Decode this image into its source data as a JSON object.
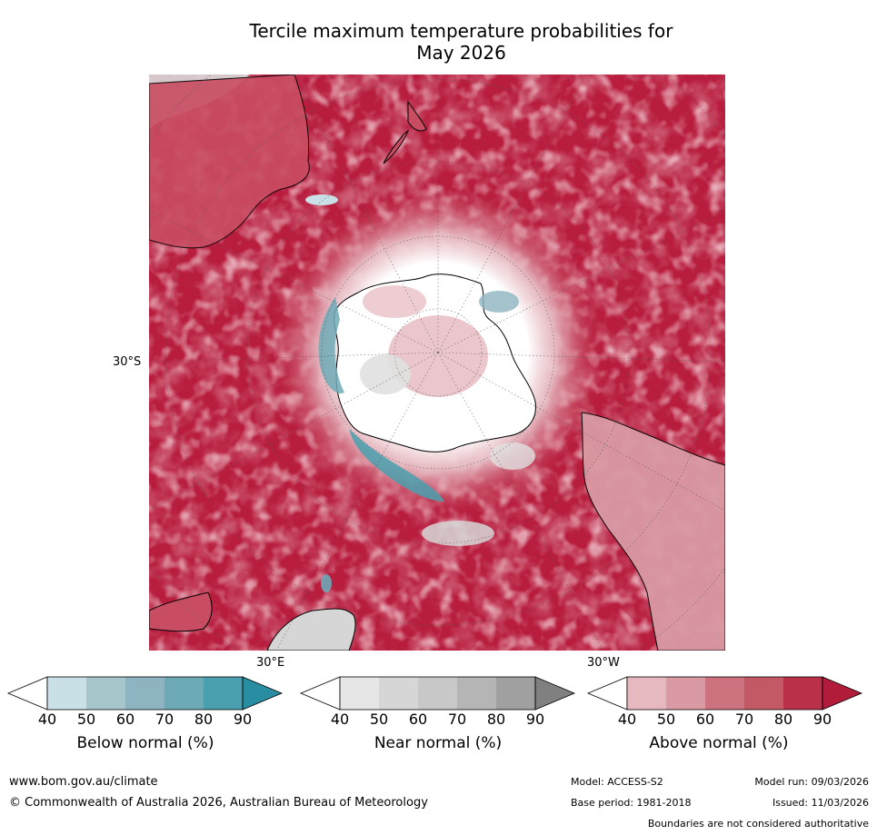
{
  "title": {
    "line1": "Tercile maximum temperature probabilities for",
    "line2": "May 2026"
  },
  "map": {
    "projection": "south polar stereographic",
    "lat_labels": [
      "30°S"
    ],
    "lon_labels": [
      "30°E",
      "30°W"
    ],
    "colors": {
      "ocean_high_above": "#b81d3e",
      "ocean_mid_above": "#c94d62",
      "antarctica_white": "#ffffff",
      "coastline": "#000000"
    }
  },
  "colorbars": [
    {
      "label": "Below normal (%)",
      "ticks": [
        "40",
        "50",
        "60",
        "70",
        "80",
        "90"
      ],
      "colors": [
        "#ffffff",
        "#c8e0e6",
        "#a6c6cc",
        "#8db4c0",
        "#6eaab6",
        "#4aa0ae",
        "#2a8ea2"
      ]
    },
    {
      "label": "Near normal (%)",
      "ticks": [
        "40",
        "50",
        "60",
        "70",
        "80",
        "90"
      ],
      "colors": [
        "#ffffff",
        "#e6e6e6",
        "#d6d6d6",
        "#c8c8c8",
        "#b5b5b5",
        "#a0a0a0",
        "#808080"
      ]
    },
    {
      "label": "Above normal (%)",
      "ticks": [
        "40",
        "50",
        "60",
        "70",
        "80",
        "90"
      ],
      "colors": [
        "#ffffff",
        "#e6b8bf",
        "#d99aa3",
        "#cd737f",
        "#c45966",
        "#bb3049",
        "#b01c3a"
      ]
    }
  ],
  "footer": {
    "website": "www.bom.gov.au/climate",
    "copyright": "© Commonwealth of Australia 2026, Australian Bureau of Meteorology",
    "model": "Model: ACCESS-S2",
    "model_run": "Model run: 09/03/2026",
    "base_period": "Base period: 1981-2018",
    "issued": "Issued: 11/03/2026",
    "disclaimer": "Boundaries are not considered authoritative"
  }
}
